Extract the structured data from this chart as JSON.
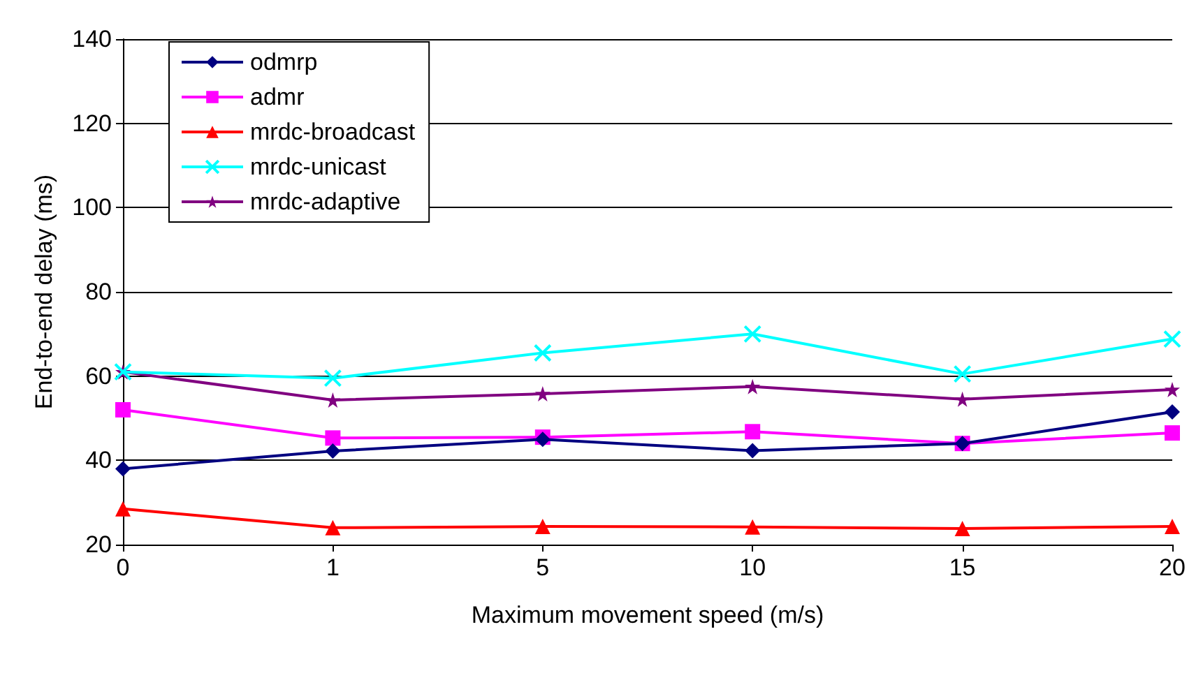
{
  "chart_data": {
    "type": "line",
    "xlabel": "Maximum movement speed (m/s)",
    "ylabel": "End-to-end delay (ms)",
    "categories": [
      "0",
      "1",
      "5",
      "10",
      "15",
      "20"
    ],
    "ylim": [
      20,
      140
    ],
    "yticks": [
      20,
      40,
      60,
      80,
      100,
      120,
      140
    ],
    "grid": "y",
    "legend": "top left",
    "series": [
      {
        "name": "odmrp",
        "color": "#000080",
        "marker": "diamond",
        "values": [
          38,
          42.2,
          45,
          42.3,
          44,
          51.5
        ]
      },
      {
        "name": "admr",
        "color": "#ff00ff",
        "marker": "square",
        "values": [
          52,
          45.3,
          45.5,
          46.8,
          44,
          46.5
        ]
      },
      {
        "name": "mrdc-broadcast",
        "color": "#ff0000",
        "marker": "triangle",
        "values": [
          28.5,
          24,
          24.3,
          24.2,
          23.8,
          24.3
        ]
      },
      {
        "name": "mrdc-unicast",
        "color": "#00ffff",
        "marker": "cross",
        "values": [
          61,
          59.5,
          65.5,
          70,
          60.5,
          68.8
        ]
      },
      {
        "name": "mrdc-adaptive",
        "color": "#800080",
        "marker": "star",
        "values": [
          61,
          54.3,
          55.8,
          57.5,
          54.5,
          56.8
        ]
      }
    ]
  }
}
